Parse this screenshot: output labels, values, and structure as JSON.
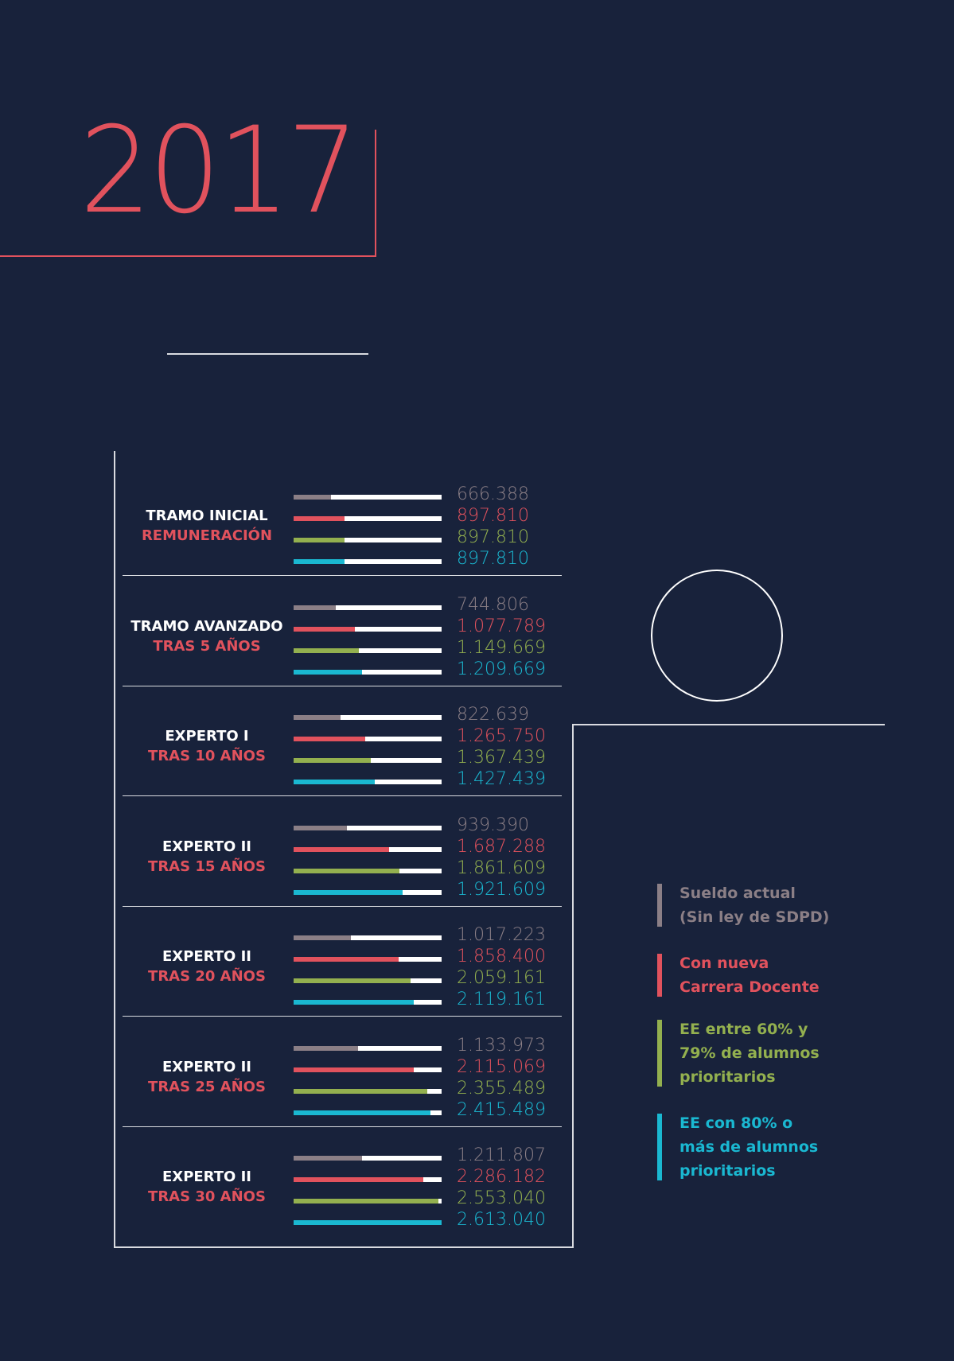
{
  "year": "2017",
  "colors": {
    "background": "#18223b",
    "gray": "#8b7f86",
    "red": "#e1525d",
    "green": "#93b04f",
    "cyan": "#1ab8d1",
    "track": "#ffffff"
  },
  "chart_data": {
    "type": "bar",
    "orientation": "horizontal",
    "max_value": 2613040,
    "categories": [
      {
        "label": "TRAMO INICIAL",
        "sublabel": "REMUNERACIÓN"
      },
      {
        "label": "TRAMO AVANZADO",
        "sublabel": "TRAS 5 AÑOS"
      },
      {
        "label": "EXPERTO I",
        "sublabel": "TRAS 10 AÑOS"
      },
      {
        "label": "EXPERTO II",
        "sublabel": "TRAS 15 AÑOS"
      },
      {
        "label": "EXPERTO II",
        "sublabel": "TRAS 20 AÑOS"
      },
      {
        "label": "EXPERTO II",
        "sublabel": "TRAS 25 AÑOS"
      },
      {
        "label": "EXPERTO II",
        "sublabel": "TRAS 30 AÑOS"
      }
    ],
    "series": [
      {
        "name": "Sueldo actual (Sin ley de SDPD)",
        "color": "#8b7f86",
        "values": [
          666388,
          744806,
          822639,
          939390,
          1017223,
          1133973,
          1211807
        ],
        "labels": [
          "666.388",
          "744.806",
          "822.639",
          "939.390",
          "1.017.223",
          "1.133.973",
          "1.211.807"
        ]
      },
      {
        "name": "Con nueva Carrera Docente",
        "color": "#e1525d",
        "values": [
          897810,
          1077789,
          1265750,
          1687288,
          1858400,
          2115069,
          2286182
        ],
        "labels": [
          "897.810",
          "1.077.789",
          "1.265.750",
          "1.687.288",
          "1.858.400",
          "2.115.069",
          "2.286.182"
        ]
      },
      {
        "name": "EE entre 60% y 79% de alumnos prioritarios",
        "color": "#93b04f",
        "values": [
          897810,
          1149669,
          1367439,
          1861609,
          2059161,
          2355489,
          2553040
        ],
        "labels": [
          "897.810",
          "1.149.669",
          "1.367.439",
          "1.861.609",
          "2.059.161",
          "2.355.489",
          "2.553.040"
        ]
      },
      {
        "name": "EE con 80% o más de alumnos prioritarios",
        "color": "#1ab8d1",
        "values": [
          897810,
          1209669,
          1427439,
          1921609,
          2119161,
          2415489,
          2613040
        ],
        "labels": [
          "897.810",
          "1.209.669",
          "1.427.439",
          "1.921.609",
          "2.119.161",
          "2.415.489",
          "2.613.040"
        ]
      }
    ],
    "legend": [
      {
        "lines": [
          "Sueldo actual",
          "(Sin ley de SDPD)"
        ],
        "color": "#8b7f86"
      },
      {
        "lines": [
          "Con nueva",
          "Carrera Docente"
        ],
        "color": "#e1525d"
      },
      {
        "lines": [
          "EE entre 60% y",
          "79% de alumnos",
          "prioritarios"
        ],
        "color": "#93b04f"
      },
      {
        "lines": [
          "EE con 80% o",
          "más de alumnos",
          "prioritarios"
        ],
        "color": "#1ab8d1"
      }
    ],
    "legend_position": "right"
  }
}
